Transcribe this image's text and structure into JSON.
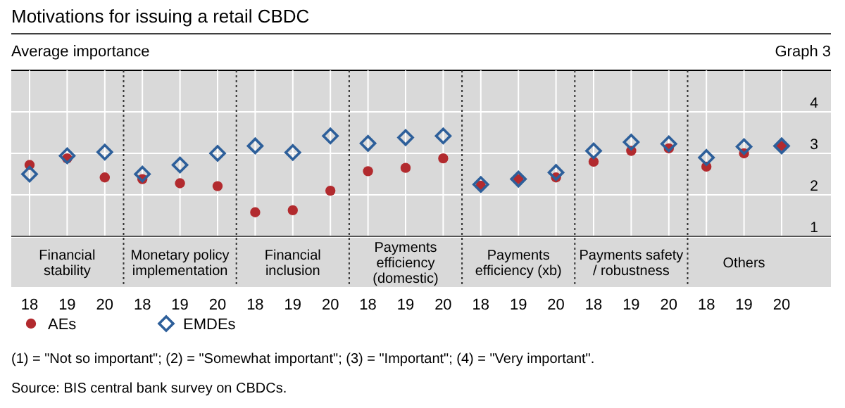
{
  "chart_data": {
    "type": "scatter",
    "title": "Motivations for issuing a retail CBDC",
    "ylabel": "Average importance",
    "categories": [
      "18",
      "19",
      "20",
      "18",
      "19",
      "20",
      "18",
      "19",
      "20",
      "18",
      "19",
      "20",
      "18",
      "19",
      "20",
      "18",
      "19",
      "20",
      "18",
      "19",
      "20"
    ],
    "series": [
      {
        "name": "AEs",
        "color": "#b22a2e",
        "marker": "circle",
        "values": [
          2.72,
          2.88,
          2.42,
          2.38,
          2.28,
          2.21,
          1.58,
          1.63,
          2.1,
          2.57,
          2.65,
          2.88,
          2.22,
          2.38,
          2.42,
          2.8,
          3.06,
          3.12,
          2.68,
          3.0,
          3.18
        ]
      },
      {
        "name": "EMDEs",
        "color": "#2d5f9a",
        "marker": "diamond",
        "values": [
          2.5,
          2.94,
          3.03,
          2.5,
          2.72,
          3.0,
          3.18,
          3.02,
          3.42,
          3.24,
          3.38,
          3.42,
          2.25,
          2.38,
          2.54,
          3.06,
          3.27,
          3.23,
          2.9,
          3.16,
          3.18
        ]
      }
    ],
    "ylim": [
      1,
      5
    ],
    "yticks": [
      1,
      2,
      3,
      4
    ],
    "grid": true,
    "legend": "bottom left",
    "annotations": [
      "Financial stability",
      "Monetary policy implementation",
      "Financial inclusion",
      "Payments efficiency (domestic)",
      "Payments efficiency (xb)",
      "Payments safety / robustness",
      "Others",
      "Graph 3",
      "(1) = \"Not so important\"; (2) = \"Somewhat important\"; (3) = \"Important\"; (4) = \"Very important\".",
      "Source: BIS central bank survey on CBDCs."
    ]
  }
}
